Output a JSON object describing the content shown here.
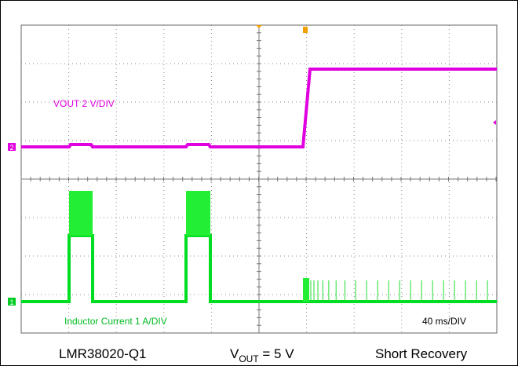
{
  "scope": {
    "ch2_label": "VOUT  2 V/DIV",
    "ch1_label": "Inductor Current  1 A/DIV",
    "timebase": "40 ms/DIV",
    "ch2_marker": "2",
    "ch1_marker": "1"
  },
  "footer": {
    "device": "LMR38020-Q1",
    "vout_main": "V",
    "vout_sub": "OUT",
    "vout_rest": " = 5 V",
    "condition": "Short Recovery"
  }
}
